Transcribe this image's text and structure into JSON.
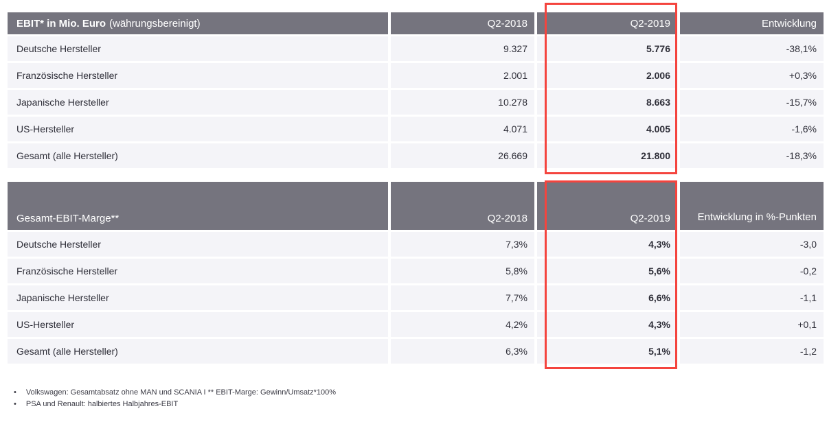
{
  "colors": {
    "header_bg": "#75747E",
    "row_bg": "#F4F4F8",
    "text_dark": "#2E2E38",
    "header_text": "#FFFFFF",
    "highlight_red": "#F4443E"
  },
  "table1": {
    "title_bold": "EBIT* in Mio. Euro",
    "title_light": "(währungsbereinigt)",
    "columns": [
      "Q2-2018",
      "Q2-2019",
      "Entwicklung"
    ],
    "rows": [
      {
        "label": "Deutsche Hersteller",
        "q2_2018": "9.327",
        "q2_2019": "5.776",
        "entwicklung": "-38,1%"
      },
      {
        "label": "Französische Hersteller",
        "q2_2018": "2.001",
        "q2_2019": "2.006",
        "entwicklung": "+0,3%"
      },
      {
        "label": "Japanische Hersteller",
        "q2_2018": "10.278",
        "q2_2019": "8.663",
        "entwicklung": "-15,7%"
      },
      {
        "label": "US-Hersteller",
        "q2_2018": "4.071",
        "q2_2019": "4.005",
        "entwicklung": "-1,6%"
      },
      {
        "label": "Gesamt (alle Hersteller)",
        "q2_2018": "26.669",
        "q2_2019": "21.800",
        "entwicklung": "-18,3%"
      }
    ]
  },
  "table2": {
    "title": "Gesamt-EBIT-Marge**",
    "columns": [
      "Q2-2018",
      "Q2-2019",
      "Entwicklung in %-Punkten"
    ],
    "rows": [
      {
        "label": "Deutsche Hersteller",
        "q2_2018": "7,3%",
        "q2_2019": "4,3%",
        "entwicklung": "-3,0"
      },
      {
        "label": "Französische Hersteller",
        "q2_2018": "5,8%",
        "q2_2019": "5,6%",
        "entwicklung": "-0,2"
      },
      {
        "label": "Japanische Hersteller",
        "q2_2018": "7,7%",
        "q2_2019": "6,6%",
        "entwicklung": "-1,1"
      },
      {
        "label": "US-Hersteller",
        "q2_2018": "4,2%",
        "q2_2019": "4,3%",
        "entwicklung": "+0,1"
      },
      {
        "label": "Gesamt (alle Hersteller)",
        "q2_2018": "6,3%",
        "q2_2019": "5,1%",
        "entwicklung": "-1,2"
      }
    ]
  },
  "footnotes": {
    "bullet": "•",
    "line1": "Volkswagen: Gesamtabsatz ohne MAN und SCANIA I ** EBIT-Marge: Gewinn/Umsatz*100%",
    "line2": "PSA und Renault: halbiertes Halbjahres-EBIT"
  },
  "chart_data": [
    {
      "type": "table",
      "title": "EBIT* in Mio. Euro (währungsbereinigt)",
      "columns": [
        "Q2-2018",
        "Q2-2019",
        "Entwicklung"
      ],
      "categories": [
        "Deutsche Hersteller",
        "Französische Hersteller",
        "Japanische Hersteller",
        "US-Hersteller",
        "Gesamt (alle Hersteller)"
      ],
      "series": [
        {
          "name": "Q2-2018",
          "values": [
            9327,
            2001,
            10278,
            4071,
            26669
          ]
        },
        {
          "name": "Q2-2019",
          "values": [
            5776,
            2006,
            8663,
            4005,
            21800
          ]
        },
        {
          "name": "Entwicklung",
          "values": [
            "-38,1%",
            "+0,3%",
            "-15,7%",
            "-1,6%",
            "-18,3%"
          ]
        }
      ],
      "highlighted_column": "Q2-2019"
    },
    {
      "type": "table",
      "title": "Gesamt-EBIT-Marge**",
      "columns": [
        "Q2-2018",
        "Q2-2019",
        "Entwicklung in %-Punkten"
      ],
      "categories": [
        "Deutsche Hersteller",
        "Französische Hersteller",
        "Japanische Hersteller",
        "US-Hersteller",
        "Gesamt (alle Hersteller)"
      ],
      "series": [
        {
          "name": "Q2-2018",
          "values": [
            "7,3%",
            "5,8%",
            "7,7%",
            "4,2%",
            "6,3%"
          ]
        },
        {
          "name": "Q2-2019",
          "values": [
            "4,3%",
            "5,6%",
            "6,6%",
            "4,3%",
            "5,1%"
          ]
        },
        {
          "name": "Entwicklung in %-Punkten",
          "values": [
            -3.0,
            -0.2,
            -1.1,
            0.1,
            -1.2
          ]
        }
      ],
      "highlighted_column": "Q2-2019"
    }
  ]
}
